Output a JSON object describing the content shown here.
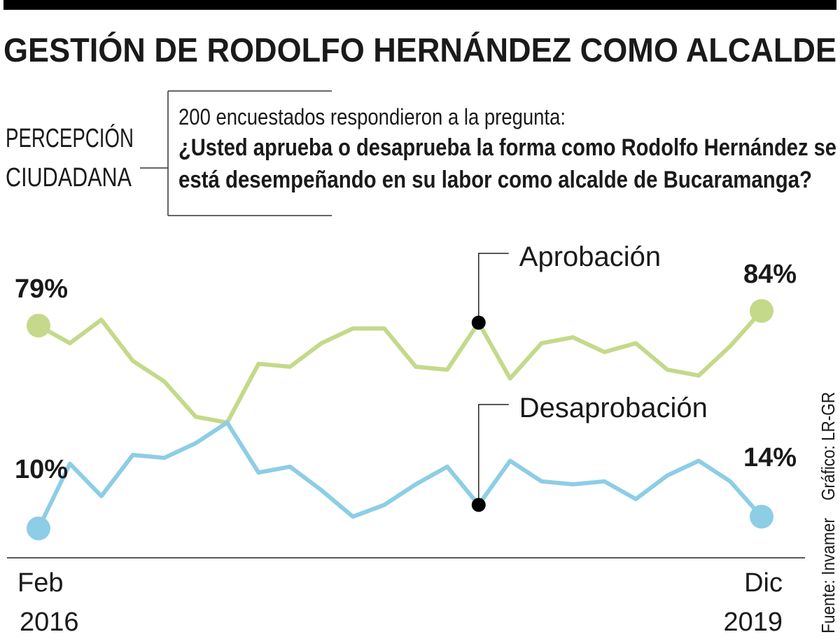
{
  "chart_data": {
    "type": "line",
    "title": "GESTIÓN DE RODOLFO HERNÁNDEZ COMO ALCALDE",
    "section_label": [
      "PERCEPCIÓN",
      "CIUDADANA"
    ],
    "question_intro": "200 encuestados respondieron a la pregunta:",
    "question": [
      "¿Usted aprueba o desaprueba la forma como Rodolfo Hernández se",
      "está desempeñando en su labor como alcalde de Bucaramanga?"
    ],
    "source": "Fuente: Invamer",
    "credit": "Gráfico: LR-GR",
    "categories": [
      "Feb 2016",
      null,
      null,
      null,
      null,
      null,
      null,
      null,
      null,
      null,
      null,
      null,
      null,
      null,
      null,
      null,
      null,
      null,
      null,
      null,
      null,
      null,
      null,
      "Dic 2019"
    ],
    "ylim": [
      0,
      100
    ],
    "series": [
      {
        "name": "Aprobación",
        "color": "#c5d98a",
        "values": [
          79,
          73,
          81,
          67,
          60,
          48,
          46,
          66,
          65,
          73,
          78,
          78,
          65,
          64,
          80,
          61,
          73,
          75,
          70,
          73,
          64,
          62,
          72,
          84
        ],
        "value_labels": [
          "79%",
          null,
          null,
          null,
          null,
          null,
          null,
          null,
          null,
          null,
          null,
          null,
          null,
          null,
          null,
          null,
          null,
          null,
          null,
          null,
          null,
          null,
          null,
          "84%"
        ]
      },
      {
        "name": "Desaprobación",
        "color": "#8dcde6",
        "values": [
          10,
          32,
          21,
          35,
          34,
          39,
          46,
          29,
          31,
          23,
          14,
          18,
          25,
          31,
          18,
          33,
          26,
          25,
          26,
          20,
          28,
          33,
          26,
          14
        ],
        "value_labels": [
          "10%",
          null,
          null,
          null,
          null,
          null,
          null,
          null,
          null,
          null,
          null,
          null,
          null,
          null,
          null,
          null,
          null,
          null,
          null,
          null,
          null,
          null,
          null,
          "14%"
        ]
      }
    ]
  }
}
